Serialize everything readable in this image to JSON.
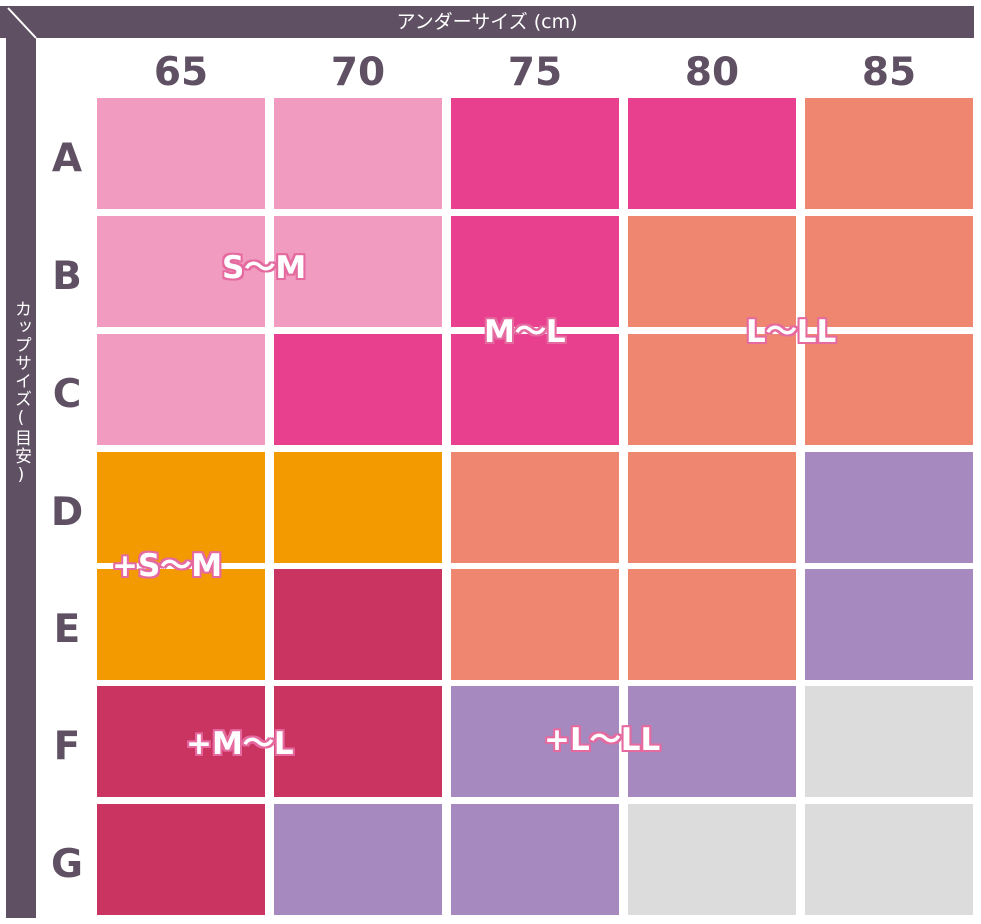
{
  "chart_data": {
    "type": "table",
    "title": "アンダーサイズ (cm)",
    "side_title": "カップサイズ(目安)",
    "columns": [
      "65",
      "70",
      "75",
      "80",
      "85"
    ],
    "rows": [
      "A",
      "B",
      "C",
      "D",
      "E",
      "F",
      "G"
    ],
    "zones": [
      {
        "label": "S〜M",
        "color": "#f19bc1"
      },
      {
        "label": "M〜L",
        "color": "#e8408f"
      },
      {
        "label": "L〜LL",
        "color": "#ef8670"
      },
      {
        "label": "+S〜M",
        "color": "#f39a00"
      },
      {
        "label": "+M〜L",
        "color": "#c93461"
      },
      {
        "label": "+L〜LL",
        "color": "#a589bf"
      },
      {
        "label": "",
        "color": "#dcdcdc"
      }
    ],
    "cells": [
      [
        0,
        0,
        1,
        1,
        2
      ],
      [
        0,
        0,
        1,
        2,
        2
      ],
      [
        0,
        1,
        1,
        2,
        2
      ],
      [
        3,
        3,
        2,
        2,
        5
      ],
      [
        3,
        4,
        2,
        2,
        5
      ],
      [
        4,
        4,
        5,
        5,
        6
      ],
      [
        4,
        5,
        5,
        6,
        6
      ]
    ]
  }
}
